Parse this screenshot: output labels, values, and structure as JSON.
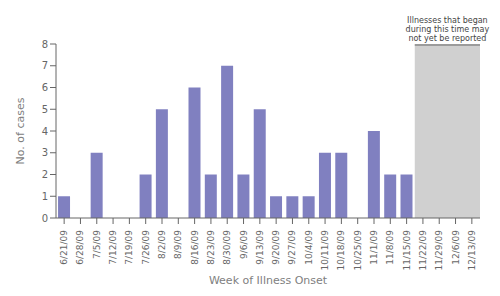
{
  "chart_data": {
    "type": "bar",
    "categories": [
      "6/21/09",
      "6/28/09",
      "7/5/09",
      "7/12/09",
      "7/19/09",
      "7/26/09",
      "8/2/09",
      "8/9/09",
      "8/16/09",
      "8/23/09",
      "8/30/09",
      "9/6/09",
      "9/13/09",
      "9/20/09",
      "9/27/09",
      "10/4/09",
      "10/11/09",
      "10/18/09",
      "10/25/09",
      "11/1/09",
      "11/8/09",
      "11/15/09",
      "11/22/09",
      "11/29/09",
      "12/6/09",
      "12/13/09"
    ],
    "values": [
      1,
      0,
      3,
      0,
      0,
      2,
      5,
      0,
      6,
      2,
      7,
      2,
      5,
      1,
      1,
      1,
      3,
      3,
      0,
      4,
      2,
      2,
      0,
      0,
      0,
      0
    ],
    "color": "#8080c0",
    "xlabel": "Week of Illness Onset",
    "ylabel": "No. of cases",
    "ylim": [
      0,
      8
    ],
    "yticks": [
      0,
      1,
      2,
      3,
      4,
      5,
      6,
      7,
      8
    ],
    "grid": false,
    "annotations": [
      {
        "text": "Illnesses that began\nduring this time may\nnot yet be reported",
        "x_from": "11/22/09",
        "x_to": "12/13/09",
        "color": "#d0d0d0"
      }
    ]
  }
}
